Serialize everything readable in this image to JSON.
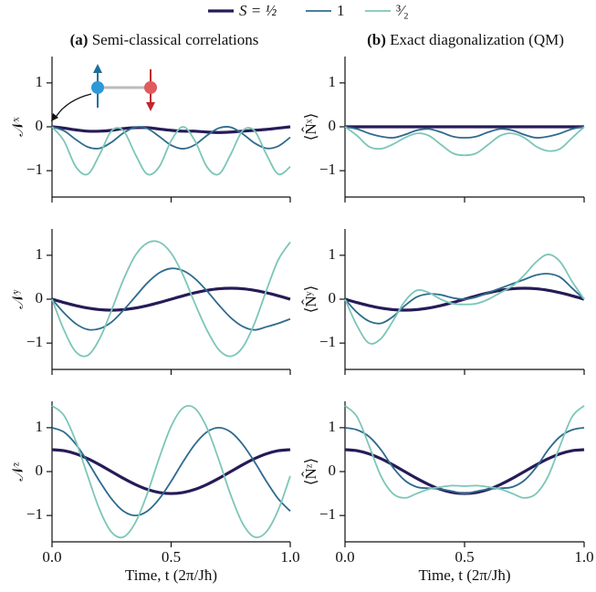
{
  "chart_data": [
    {
      "type": "line",
      "panel_label": "(a)",
      "title": "Semi-classical correlations",
      "ylabel": "𝒩ˣ",
      "x": [
        0,
        0.05,
        0.1,
        0.15,
        0.2,
        0.25,
        0.3,
        0.35,
        0.4,
        0.45,
        0.5,
        0.55,
        0.6,
        0.65,
        0.7,
        0.75,
        0.8,
        0.85,
        0.9,
        0.95,
        1
      ],
      "xlim": [
        0,
        1
      ],
      "ylim": [
        -1.6,
        1.6
      ],
      "xticks": [
        0,
        0.5,
        1
      ],
      "yticks": [
        {
          "value": -1,
          "label": "−1"
        },
        0,
        1
      ],
      "series": [
        {
          "name": "S = ½",
          "color": "#261b57",
          "values": [
            0,
            -0.03,
            -0.07,
            -0.1,
            -0.1,
            -0.08,
            -0.04,
            -0.02,
            -0.02,
            -0.05,
            -0.08,
            -0.1,
            -0.1,
            -0.12,
            -0.13,
            -0.12,
            -0.1,
            -0.08,
            -0.06,
            -0.03,
            0
          ]
        },
        {
          "name": "1",
          "color": "#2f6b8e",
          "values": [
            0,
            -0.09,
            -0.29,
            -0.46,
            -0.49,
            -0.35,
            -0.14,
            -0.01,
            -0.04,
            -0.22,
            -0.42,
            -0.5,
            -0.41,
            -0.2,
            -0.03,
            -0.01,
            -0.16,
            -0.37,
            -0.49,
            -0.44,
            -0.24
          ]
        },
        {
          "name": "³⁄₂",
          "color": "#7cc6b8",
          "values": [
            0,
            -0.32,
            -0.91,
            -1.08,
            -0.63,
            -0.09,
            -0.09,
            -0.63,
            -1.08,
            -0.91,
            -0.32,
            0,
            -0.32,
            -0.91,
            -1.08,
            -0.63,
            -0.09,
            -0.09,
            -0.63,
            -1.08,
            -0.91
          ]
        }
      ]
    },
    {
      "type": "line",
      "panel_label": "(b)",
      "title": "Exact diagonalization (QM)",
      "ylabel": "⟨N̂ˣ⟩",
      "x": [
        0,
        0.05,
        0.1,
        0.15,
        0.2,
        0.25,
        0.3,
        0.35,
        0.4,
        0.45,
        0.5,
        0.55,
        0.6,
        0.65,
        0.7,
        0.75,
        0.8,
        0.85,
        0.9,
        0.95,
        1
      ],
      "xlim": [
        0,
        1
      ],
      "ylim": [
        -1.6,
        1.6
      ],
      "xticks": [
        0,
        0.5,
        1
      ],
      "yticks": [
        {
          "value": -1,
          "label": "−1"
        },
        0,
        1
      ],
      "series": [
        {
          "color": "#261b57",
          "values": [
            0,
            0,
            0,
            0,
            0,
            0,
            0,
            0,
            0,
            0,
            0,
            0,
            0,
            0,
            0,
            0,
            0,
            0,
            0,
            0,
            0
          ]
        },
        {
          "color": "#2f6b8e",
          "values": [
            0,
            -0.05,
            -0.15,
            -0.22,
            -0.25,
            -0.18,
            -0.08,
            -0.05,
            -0.12,
            -0.22,
            -0.25,
            -0.22,
            -0.12,
            -0.05,
            -0.08,
            -0.18,
            -0.25,
            -0.22,
            -0.15,
            -0.05,
            0
          ]
        },
        {
          "color": "#7cc6b8",
          "values": [
            0,
            -0.2,
            -0.45,
            -0.5,
            -0.4,
            -0.25,
            -0.15,
            -0.2,
            -0.4,
            -0.6,
            -0.65,
            -0.6,
            -0.4,
            -0.2,
            -0.15,
            -0.25,
            -0.45,
            -0.55,
            -0.5,
            -0.25,
            0
          ]
        }
      ]
    },
    {
      "type": "line",
      "ylabel": "𝒩ʸ",
      "x": [
        0,
        0.05,
        0.1,
        0.15,
        0.2,
        0.25,
        0.3,
        0.35,
        0.4,
        0.45,
        0.5,
        0.55,
        0.6,
        0.65,
        0.7,
        0.75,
        0.8,
        0.85,
        0.9,
        0.95,
        1
      ],
      "xlim": [
        0,
        1
      ],
      "ylim": [
        -1.6,
        1.6
      ],
      "xticks": [
        0,
        0.5,
        1
      ],
      "yticks": [
        {
          "value": -1,
          "label": "−1"
        },
        0,
        1
      ],
      "series": [
        {
          "color": "#261b57",
          "values": [
            0,
            -0.077,
            -0.147,
            -0.202,
            -0.238,
            -0.25,
            -0.238,
            -0.202,
            -0.147,
            -0.077,
            0,
            0.077,
            0.147,
            0.202,
            0.238,
            0.25,
            0.238,
            0.202,
            0.147,
            0.077,
            0
          ]
        },
        {
          "color": "#2f6b8e",
          "values": [
            0,
            -0.31,
            -0.56,
            -0.69,
            -0.67,
            -0.52,
            -0.25,
            0.06,
            0.37,
            0.6,
            0.7,
            0.65,
            0.47,
            0.19,
            -0.13,
            -0.42,
            -0.62,
            -0.7,
            -0.63,
            -0.55,
            -0.45
          ]
        },
        {
          "color": "#7cc6b8",
          "values": [
            0,
            -0.7,
            -1.2,
            -1.28,
            -0.9,
            -0.25,
            0.45,
            1,
            1.28,
            1.3,
            1.05,
            0.55,
            -0.1,
            -0.7,
            -1.15,
            -1.3,
            -1.1,
            -0.55,
            0.2,
            0.9,
            1.3
          ]
        }
      ]
    },
    {
      "type": "line",
      "ylabel": "⟨N̂ʸ⟩",
      "x": [
        0,
        0.05,
        0.1,
        0.15,
        0.2,
        0.25,
        0.3,
        0.35,
        0.4,
        0.45,
        0.5,
        0.55,
        0.6,
        0.65,
        0.7,
        0.75,
        0.8,
        0.85,
        0.9,
        0.95,
        1
      ],
      "xlim": [
        0,
        1
      ],
      "ylim": [
        -1.6,
        1.6
      ],
      "xticks": [
        0,
        0.5,
        1
      ],
      "yticks": [
        {
          "value": -1,
          "label": "−1"
        },
        0,
        1
      ],
      "series": [
        {
          "color": "#261b57",
          "values": [
            0,
            -0.077,
            -0.147,
            -0.202,
            -0.238,
            -0.25,
            -0.238,
            -0.202,
            -0.147,
            -0.077,
            0,
            0.077,
            0.147,
            0.202,
            0.238,
            0.25,
            0.238,
            0.202,
            0.147,
            0.077,
            0
          ]
        },
        {
          "color": "#2f6b8e",
          "values": [
            0,
            -0.3,
            -0.5,
            -0.55,
            -0.4,
            -0.15,
            0.05,
            0.12,
            0.1,
            0.03,
            0,
            0.05,
            0.15,
            0.25,
            0.35,
            0.45,
            0.55,
            0.58,
            0.5,
            0.25,
            0
          ]
        },
        {
          "color": "#7cc6b8",
          "values": [
            0,
            -0.6,
            -1,
            -0.9,
            -0.5,
            -0.05,
            0.2,
            0.15,
            0,
            -0.1,
            -0.12,
            -0.1,
            0,
            0.15,
            0.3,
            0.55,
            0.85,
            1.02,
            0.85,
            0.4,
            0
          ]
        }
      ]
    },
    {
      "type": "line",
      "ylabel": "𝒩ᶻ",
      "xlabel": "Time, t (2π/Jħ)",
      "x": [
        0,
        0.05,
        0.1,
        0.15,
        0.2,
        0.25,
        0.3,
        0.35,
        0.4,
        0.45,
        0.5,
        0.55,
        0.6,
        0.65,
        0.7,
        0.75,
        0.8,
        0.85,
        0.9,
        0.95,
        1
      ],
      "xlim": [
        0,
        1
      ],
      "ylim": [
        -1.6,
        1.6
      ],
      "xticks": [
        {
          "value": 0,
          "label": "0.0"
        },
        0.5,
        {
          "value": 1,
          "label": "1.0"
        }
      ],
      "yticks": [
        {
          "value": -1,
          "label": "−1"
        },
        0,
        1
      ],
      "series": [
        {
          "color": "#261b57",
          "values": [
            0.5,
            0.476,
            0.405,
            0.294,
            0.155,
            0,
            -0.155,
            -0.294,
            -0.405,
            -0.476,
            -0.5,
            -0.476,
            -0.405,
            -0.294,
            -0.155,
            0,
            0.155,
            0.294,
            0.405,
            0.476,
            0.5
          ]
        },
        {
          "color": "#2f6b8e",
          "values": [
            1,
            0.901,
            0.623,
            0.223,
            -0.223,
            -0.623,
            -0.901,
            -1,
            -0.901,
            -0.623,
            -0.223,
            0.223,
            0.623,
            0.901,
            1,
            0.901,
            0.623,
            0.223,
            -0.223,
            -0.623,
            -0.901
          ]
        },
        {
          "color": "#7cc6b8",
          "values": [
            1.5,
            1.28,
            0.69,
            -0.1,
            -0.87,
            -1.38,
            -1.49,
            -1.16,
            -0.5,
            0.31,
            1.03,
            1.45,
            1.44,
            1,
            0.27,
            -0.53,
            -1.18,
            -1.49,
            -1.37,
            -0.87,
            -0.1
          ]
        }
      ]
    },
    {
      "type": "line",
      "ylabel": "⟨N̂ᶻ⟩",
      "xlabel": "Time, t (2π/Jħ)",
      "x": [
        0,
        0.05,
        0.1,
        0.15,
        0.2,
        0.25,
        0.3,
        0.35,
        0.4,
        0.45,
        0.5,
        0.55,
        0.6,
        0.65,
        0.7,
        0.75,
        0.8,
        0.85,
        0.9,
        0.95,
        1
      ],
      "xlim": [
        0,
        1
      ],
      "ylim": [
        -1.6,
        1.6
      ],
      "xticks": [
        {
          "value": 0,
          "label": "0.0"
        },
        0.5,
        {
          "value": 1,
          "label": "1.0"
        }
      ],
      "yticks": [
        {
          "value": -1,
          "label": "−1"
        },
        0,
        1
      ],
      "series": [
        {
          "color": "#261b57",
          "values": [
            0.5,
            0.476,
            0.405,
            0.294,
            0.155,
            0,
            -0.155,
            -0.294,
            -0.405,
            -0.476,
            -0.5,
            -0.476,
            -0.405,
            -0.294,
            -0.155,
            0,
            0.155,
            0.294,
            0.405,
            0.476,
            0.5
          ]
        },
        {
          "color": "#2f6b8e",
          "values": [
            1,
            0.95,
            0.8,
            0.5,
            0.1,
            -0.2,
            -0.35,
            -0.38,
            -0.4,
            -0.45,
            -0.5,
            -0.45,
            -0.4,
            -0.38,
            -0.35,
            -0.2,
            0.1,
            0.5,
            0.8,
            0.95,
            1
          ]
        },
        {
          "color": "#7cc6b8",
          "values": [
            1.5,
            1.25,
            0.6,
            -0.1,
            -0.5,
            -0.6,
            -0.5,
            -0.4,
            -0.35,
            -0.32,
            -0.33,
            -0.32,
            -0.35,
            -0.4,
            -0.5,
            -0.6,
            -0.5,
            -0.1,
            0.6,
            1.25,
            1.5
          ]
        }
      ]
    }
  ]
}
